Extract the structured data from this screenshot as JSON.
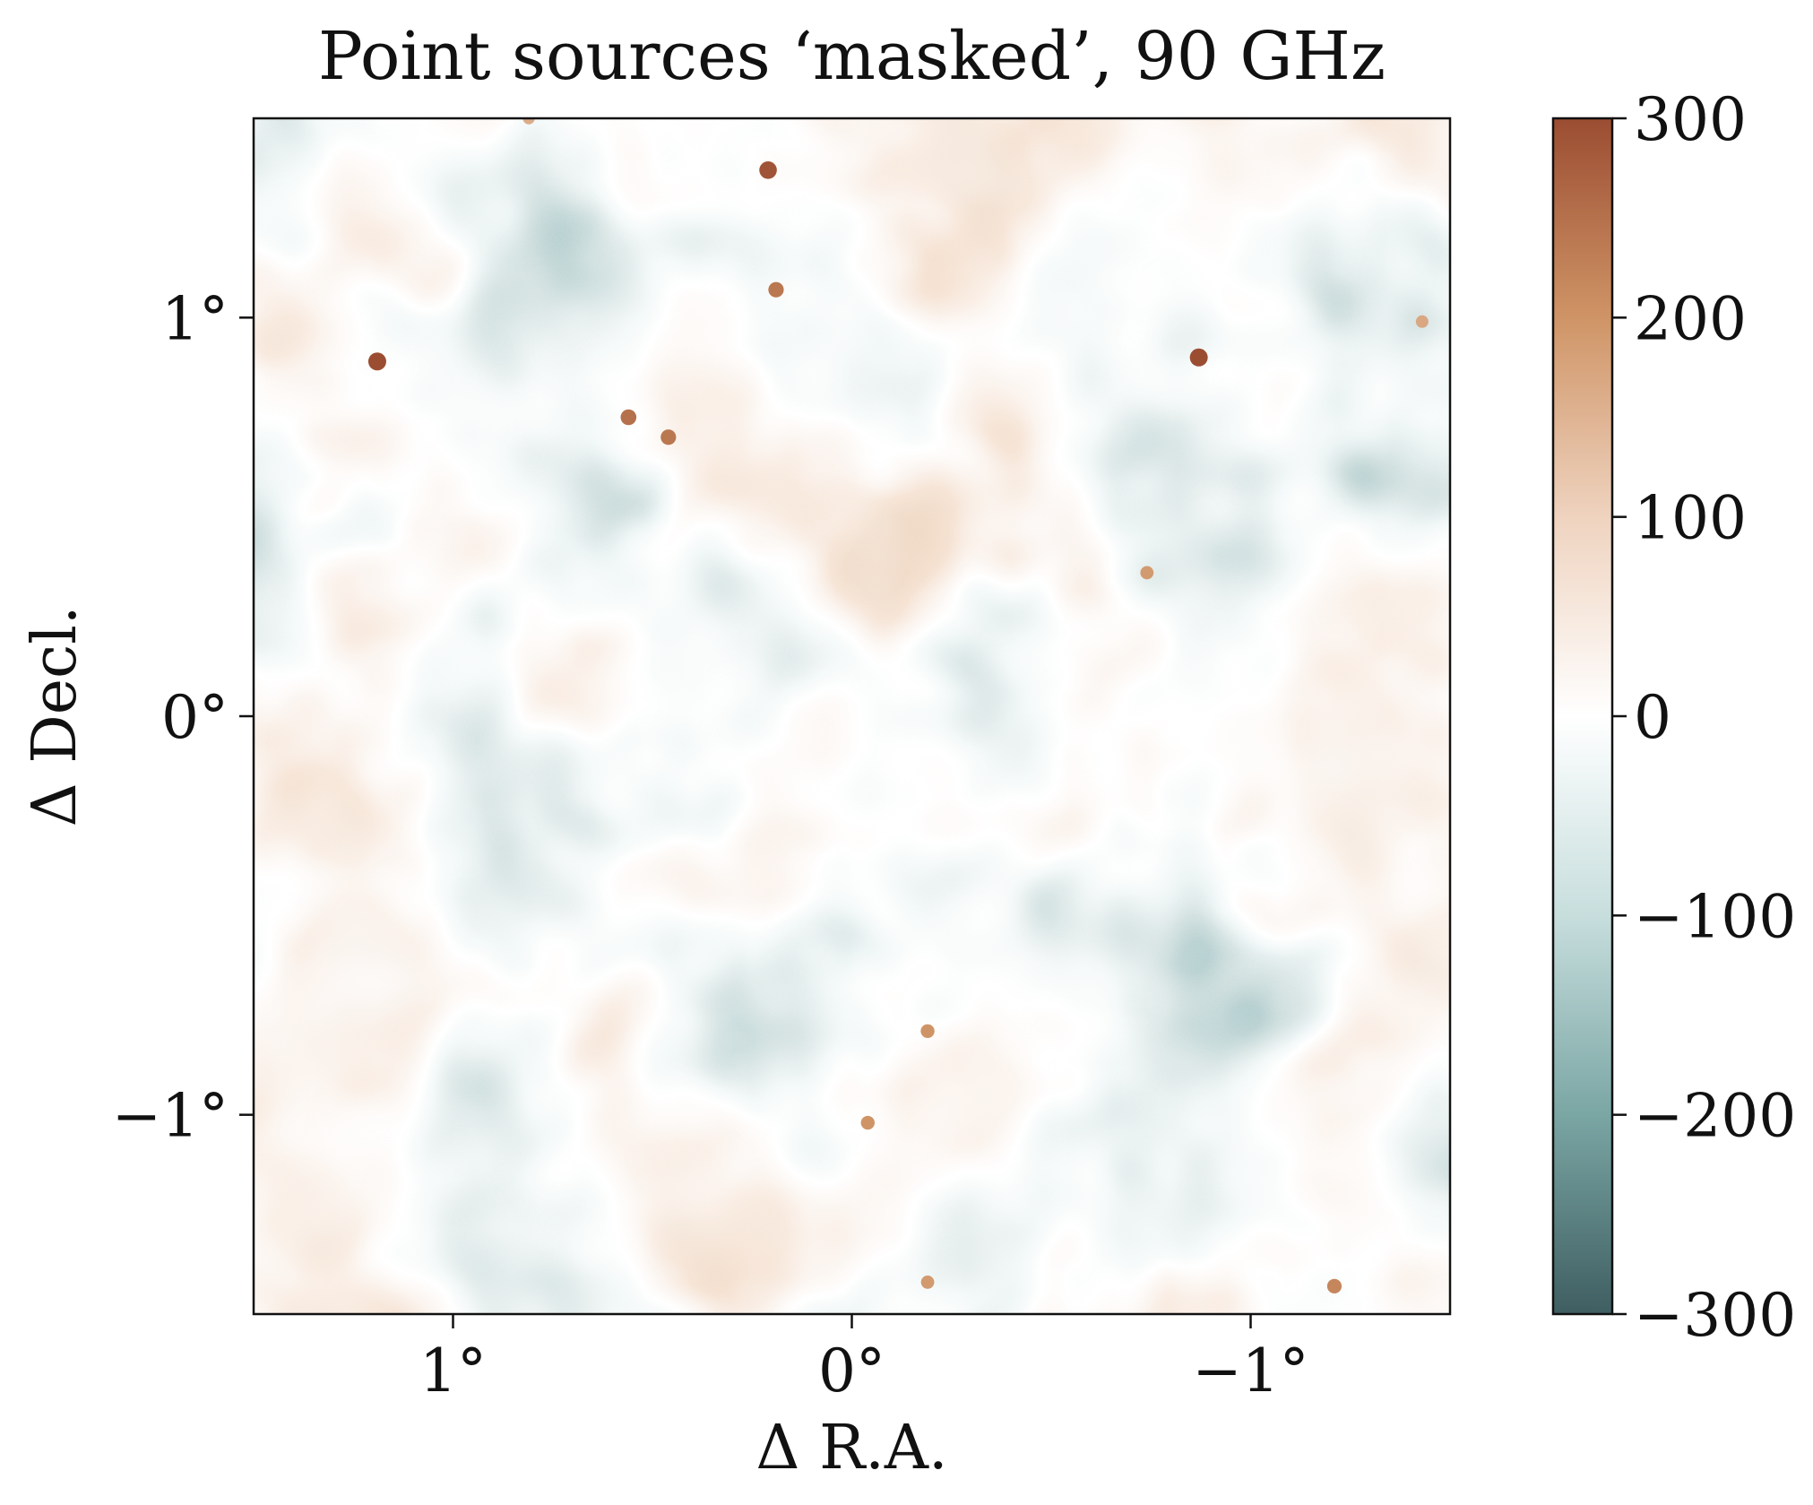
{
  "chart_data": {
    "type": "heatmap",
    "title": "Point sources ‘masked’, 90 GHz",
    "xlabel": "Δ R.A.",
    "ylabel": "Δ Decl.",
    "x_axis": {
      "range": [
        1.5,
        -1.5
      ],
      "ticks": [
        1,
        0,
        -1
      ],
      "tick_labels": [
        "1°",
        "0°",
        "−1°"
      ],
      "direction": "decreasing-left-to-right"
    },
    "y_axis": {
      "range": [
        -1.5,
        1.5
      ],
      "ticks": [
        1,
        0,
        -1
      ],
      "tick_labels": [
        "1°",
        "0°",
        "−1°"
      ]
    },
    "colorbar": {
      "range": [
        -300,
        300
      ],
      "ticks": [
        300,
        200,
        100,
        0,
        -100,
        -200,
        -300
      ],
      "tick_labels": [
        "300",
        "200",
        "100",
        "0",
        "−100",
        "−200",
        "−300"
      ],
      "placement": "right",
      "colors": [
        "#3f5e61",
        "#7aa6a4",
        "#c7dedd",
        "#ffffff",
        "#efd3bf",
        "#cf9466",
        "#9b4d32"
      ]
    },
    "grid": false,
    "point_sources": [
      {
        "x": 1.19,
        "y": 0.89,
        "value": 300
      },
      {
        "x": -0.87,
        "y": 0.9,
        "value": 300
      },
      {
        "x": 0.21,
        "y": 1.37,
        "value": 290
      },
      {
        "x": 0.19,
        "y": 1.07,
        "value": 240
      },
      {
        "x": 0.56,
        "y": 0.75,
        "value": 250
      },
      {
        "x": 0.46,
        "y": 0.7,
        "value": 240
      },
      {
        "x": -0.74,
        "y": 0.36,
        "value": 190
      },
      {
        "x": -1.43,
        "y": 0.99,
        "value": 170
      },
      {
        "x": -0.19,
        "y": -0.79,
        "value": 200
      },
      {
        "x": -0.04,
        "y": -1.02,
        "value": 200
      },
      {
        "x": -1.21,
        "y": -1.43,
        "value": 220
      },
      {
        "x": -0.19,
        "y": -1.42,
        "value": 190
      },
      {
        "x": 0.81,
        "y": 1.5,
        "value": 160
      }
    ]
  }
}
